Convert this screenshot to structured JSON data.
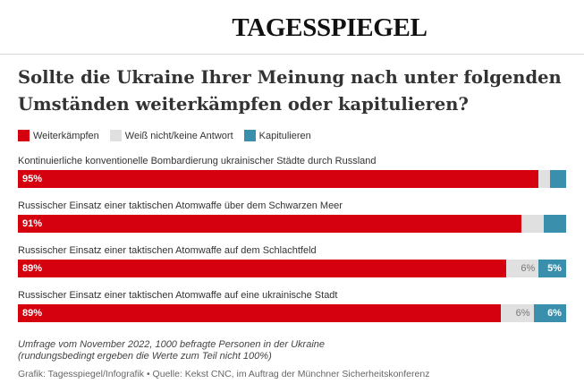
{
  "header": {
    "brand": "TAGESSPIEGEL"
  },
  "title": "Sollte die Ukraine Ihrer Meinung nach unter folgenden Umständen weiterkämpfen oder kapitulieren?",
  "colors": {
    "fight": "#d5010f",
    "dontknow": "#e0e0e0",
    "capitulate": "#3a8fad",
    "text": "#333333"
  },
  "chart_data": {
    "type": "bar",
    "orientation": "horizontal",
    "stacked": true,
    "legend_position": "top-left",
    "categories": [
      "Kontinuierliche konventionelle Bombardierung ukrainischer Städte durch Russland",
      "Russischer Einsatz einer taktischen Atomwaffe über dem Schwarzen Meer",
      "Russischer Einsatz einer taktischen Atomwaffe auf dem Schlachtfeld",
      "Russischer Einsatz einer taktischen Atomwaffe auf eine ukrainische Stadt"
    ],
    "series": [
      {
        "name": "Weiterkämpfen",
        "values": [
          95,
          91,
          89,
          89
        ],
        "labels": [
          "95%",
          "91%",
          "89%",
          "89%"
        ]
      },
      {
        "name": "Weiß nicht/keine Antwort",
        "values": [
          2,
          4,
          6,
          6
        ],
        "labels": [
          "",
          "",
          "6%",
          "6%"
        ]
      },
      {
        "name": "Kapitulieren",
        "values": [
          3,
          4,
          5,
          6
        ],
        "labels": [
          "",
          "",
          "5%",
          "6%"
        ]
      }
    ]
  },
  "footer": {
    "note_line1": "Umfrage vom November 2022, 1000 befragte Personen in der Ukraine",
    "note_line2": "(rundungsbedingt ergeben die Werte zum Teil nicht 100%)",
    "source": "Grafik: Tagesspiegel/Infografik • Quelle: Kekst CNC, im Auftrag der Münchner Sicherheitskonferenz"
  }
}
